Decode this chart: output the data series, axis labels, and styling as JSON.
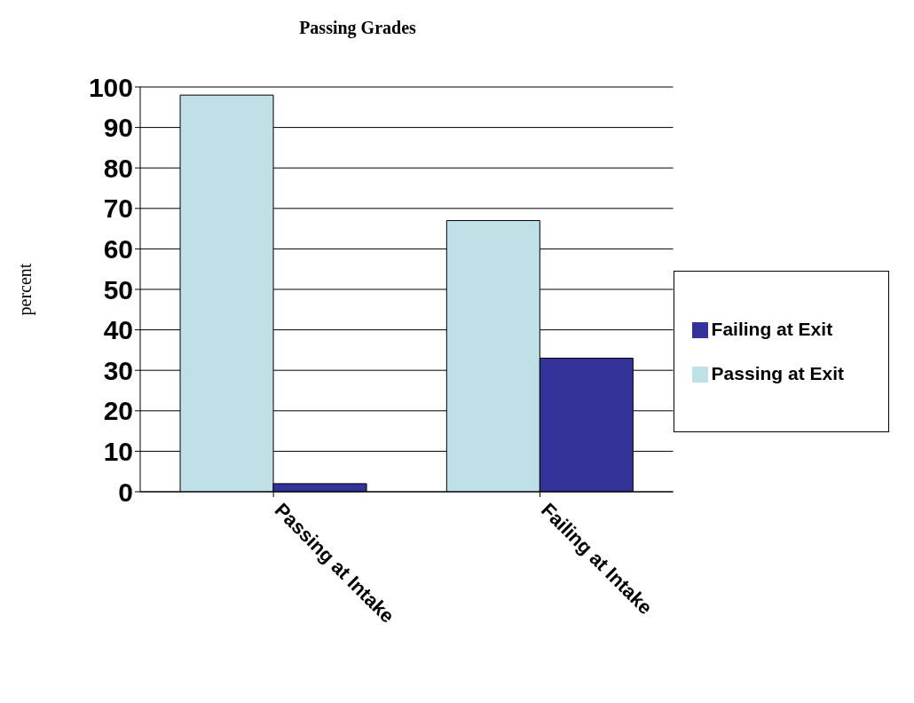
{
  "chart_data": {
    "type": "bar",
    "title": "Passing Grades",
    "ylabel": "percent",
    "categories": [
      "Passing at Intake",
      "Failing at Intake"
    ],
    "series": [
      {
        "name": "Passing at Exit",
        "color": "#bfe0e6",
        "values": [
          98,
          67
        ]
      },
      {
        "name": "Failing at Exit",
        "color": "#333399",
        "values": [
          2,
          33
        ]
      }
    ],
    "ylim": [
      0,
      100
    ],
    "yticks": [
      0,
      10,
      20,
      30,
      40,
      50,
      60,
      70,
      80,
      90,
      100
    ],
    "grid": "y",
    "legend": "right"
  }
}
